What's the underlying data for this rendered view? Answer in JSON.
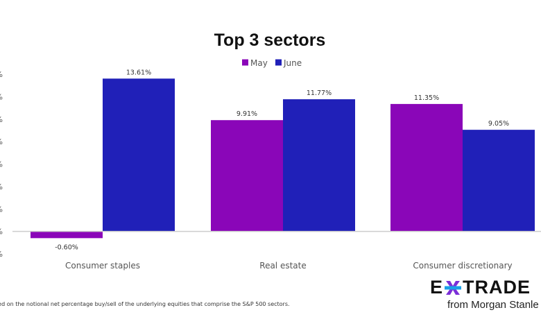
{
  "chart_data": {
    "type": "bar",
    "title": "Top 3 sectors",
    "xlabel": "",
    "ylabel": "",
    "categories": [
      "Consumer staples",
      "Real estate",
      "Consumer discretionary"
    ],
    "series": [
      {
        "name": "May",
        "color": "#8a06b8",
        "values": [
          -0.6,
          9.91,
          11.35
        ],
        "labels": [
          "-0.60%",
          "9.91%",
          "11.35%"
        ]
      },
      {
        "name": "June",
        "color": "#2020b8",
        "values": [
          13.61,
          11.77,
          9.05
        ],
        "labels": [
          "13.61%",
          "11.77%",
          "9.05%"
        ]
      }
    ],
    "ylim": [
      -2,
      14
    ],
    "yticks": [
      14,
      12,
      10,
      8,
      6,
      4,
      2,
      0,
      -2
    ],
    "ytick_labels": [
      "%",
      "%",
      "%",
      "%",
      "%",
      "%",
      "%",
      "%",
      "%"
    ],
    "grid": false,
    "legend": {
      "position": "top-center",
      "entries": [
        "May",
        "June"
      ]
    }
  },
  "footnote": "sed on the notional net percentage buy/sell of the underlying equities that comprise the S&P 500 sectors.",
  "logo": {
    "left_letter": "E",
    "right_text": "TRADE",
    "tagline": "from Morgan Stanle",
    "colors": {
      "purple": "#7b2fd8",
      "cyan": "#1aa0e8"
    }
  }
}
